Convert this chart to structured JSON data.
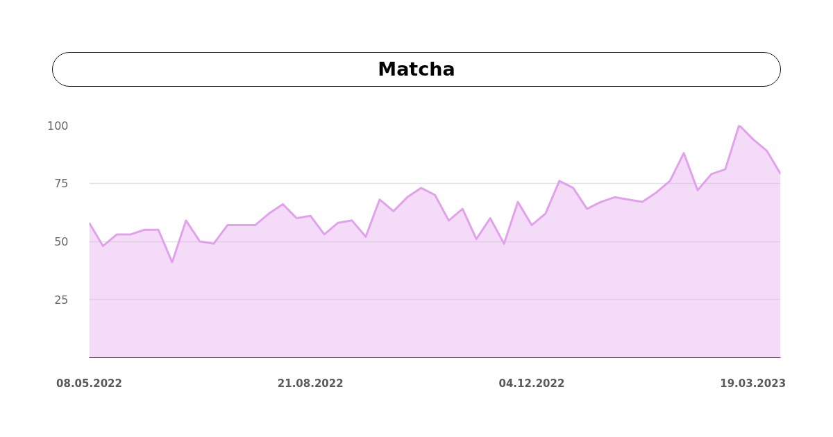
{
  "chart_data": {
    "type": "area",
    "title": "Matcha",
    "categories": [
      "08.05.2022",
      null,
      null,
      null,
      null,
      null,
      null,
      null,
      null,
      null,
      null,
      null,
      null,
      null,
      null,
      null,
      "21.08.2022",
      null,
      null,
      null,
      null,
      null,
      null,
      null,
      null,
      null,
      null,
      null,
      null,
      null,
      null,
      null,
      "04.12.2022",
      null,
      null,
      null,
      null,
      null,
      null,
      null,
      null,
      null,
      null,
      null,
      null,
      null,
      null,
      null,
      "19.03.2023",
      null,
      null
    ],
    "series": [
      {
        "color": "#e1a2ec",
        "values": [
          58,
          48,
          53,
          53,
          55,
          55,
          41,
          59,
          50,
          49,
          57,
          57,
          57,
          62,
          66,
          60,
          61,
          53,
          58,
          59,
          52,
          68,
          63,
          69,
          73,
          70,
          59,
          64,
          51,
          60,
          49,
          67,
          57,
          62,
          76,
          73,
          64,
          67,
          69,
          68,
          67,
          71,
          76,
          88,
          72,
          79,
          81,
          100,
          94,
          89,
          79
        ]
      }
    ],
    "ylim": [
      0,
      100
    ],
    "yticks": [
      25,
      50,
      75,
      100
    ],
    "grid": "y"
  }
}
